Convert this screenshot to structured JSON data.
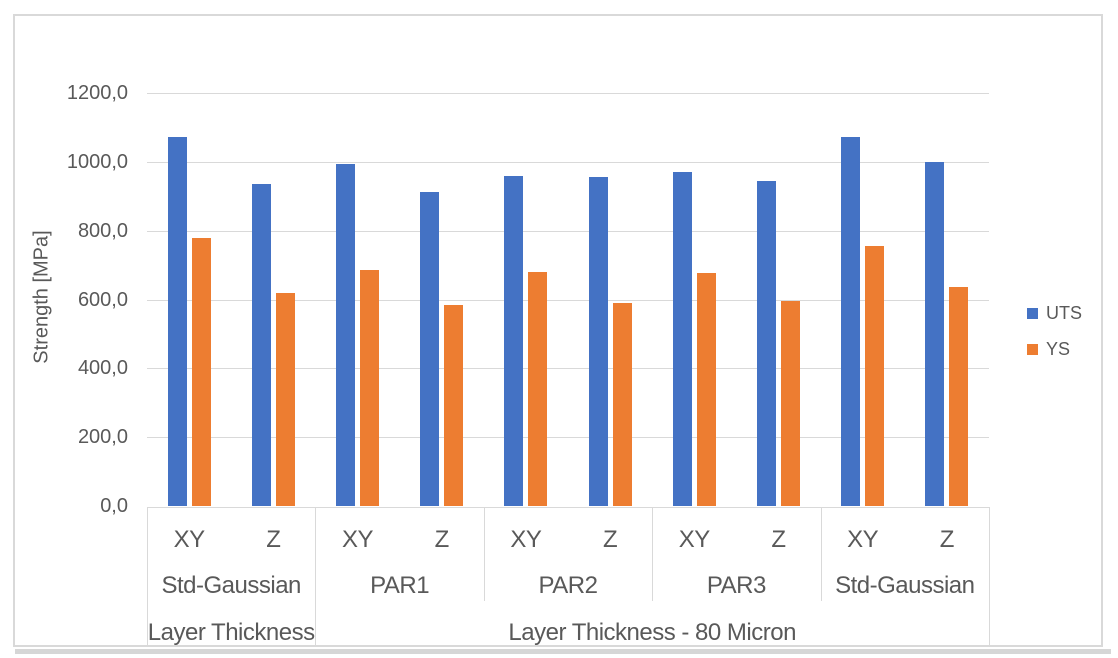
{
  "chart_data": {
    "type": "bar",
    "title": "",
    "xlabel": "",
    "ylabel": "Strength [MPa]",
    "ylim": [
      0,
      1200
    ],
    "grid": true,
    "legend_position": "right",
    "yticks": [
      0,
      200,
      400,
      600,
      800,
      1000,
      1200
    ],
    "ytick_labels": [
      "0,0",
      "200,0",
      "400,0",
      "600,0",
      "800,0",
      "1000,0",
      "1200,0"
    ],
    "group_labels": [
      "Std-Gaussian",
      "PAR1",
      "PAR2",
      "PAR3",
      "Std-Gaussian"
    ],
    "sub_labels": [
      "XY",
      "Z"
    ],
    "categories": [
      "Std-Gaussian XY",
      "Std-Gaussian Z",
      "PAR1 XY",
      "PAR1 Z",
      "PAR2 XY",
      "PAR2 Z",
      "PAR3 XY",
      "PAR3 Z",
      "Std-Gaussian XY",
      "Std-Gaussian Z"
    ],
    "series": [
      {
        "name": "UTS",
        "color": "#4472C4",
        "values": [
          1072,
          935,
          995,
          912,
          960,
          955,
          972,
          945,
          1072,
          1000
        ]
      },
      {
        "name": "YS",
        "color": "#ED7D31",
        "values": [
          780,
          620,
          685,
          583,
          680,
          590,
          676,
          597,
          755,
          637
        ]
      }
    ],
    "outer_category_row": [
      {
        "label": "Layer Thickness",
        "from_group": 0,
        "to_group": 0
      },
      {
        "label": "Layer Thickness - 80 Micron",
        "from_group": 1,
        "to_group": 4
      }
    ]
  },
  "colors": {
    "uts": "#4472C4",
    "ys": "#ED7D31",
    "gridline": "#d9d9d9",
    "axis_text": "#595959",
    "frame_border": "#d9d9d9"
  }
}
